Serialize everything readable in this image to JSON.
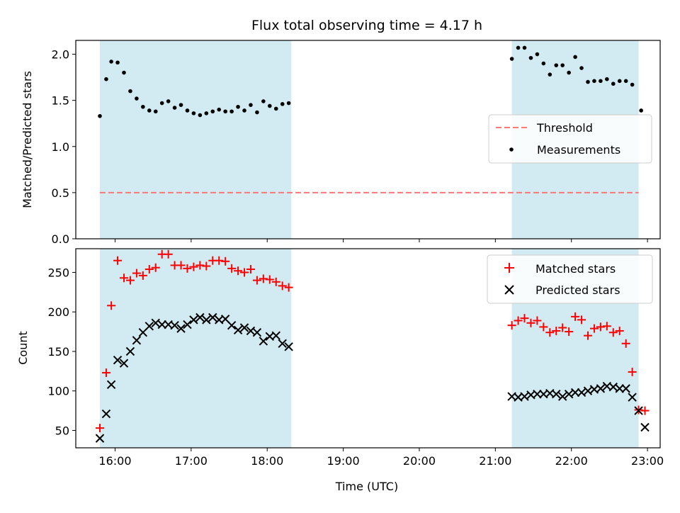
{
  "colors": {
    "shade": "#add8e6",
    "threshold": "#ff7777",
    "measurements": "#000000",
    "matched": "#ff0000",
    "predicted": "#000000"
  },
  "chart_data": [
    {
      "type": "scatter",
      "title": "Flux total observing time = 4.17 h",
      "ylabel": "Matched/Predicted stars",
      "xlabel": "",
      "xlim": [
        "15:29",
        "23:10"
      ],
      "ylim": [
        0,
        2.15
      ],
      "xticks": [
        "16:00",
        "17:00",
        "18:00",
        "19:00",
        "20:00",
        "21:00",
        "22:00",
        "23:00"
      ],
      "yticks": [
        "0.0",
        "0.5",
        "1.0",
        "1.5",
        "2.0"
      ],
      "shaded_regions": [
        [
          "15:48",
          "18:19"
        ],
        [
          "21:13",
          "22:53"
        ]
      ],
      "threshold": {
        "name": "Threshold",
        "value": 0.5,
        "x_range": [
          "15:48",
          "22:53"
        ]
      },
      "legend_position": "center-right",
      "series": [
        {
          "name": "Measurements",
          "marker": "dot",
          "x": [
            "15:48",
            "15:53",
            "15:57",
            "16:02",
            "16:07",
            "16:12",
            "16:17",
            "16:22",
            "16:27",
            "16:32",
            "16:37",
            "16:42",
            "16:47",
            "16:52",
            "16:57",
            "17:02",
            "17:07",
            "17:12",
            "17:17",
            "17:22",
            "17:27",
            "17:32",
            "17:37",
            "17:42",
            "17:47",
            "17:52",
            "17:57",
            "18:02",
            "18:07",
            "18:12",
            "18:17",
            "21:13",
            "21:18",
            "21:23",
            "21:28",
            "21:33",
            "21:38",
            "21:43",
            "21:48",
            "21:53",
            "21:58",
            "22:03",
            "22:08",
            "22:13",
            "22:18",
            "22:23",
            "22:28",
            "22:33",
            "22:38",
            "22:43",
            "22:48",
            "22:55"
          ],
          "y": [
            1.33,
            1.73,
            1.92,
            1.91,
            1.8,
            1.6,
            1.52,
            1.43,
            1.39,
            1.38,
            1.47,
            1.49,
            1.42,
            1.45,
            1.39,
            1.36,
            1.34,
            1.36,
            1.38,
            1.4,
            1.38,
            1.38,
            1.43,
            1.39,
            1.45,
            1.37,
            1.49,
            1.44,
            1.41,
            1.46,
            1.47,
            1.95,
            2.07,
            2.07,
            1.96,
            2.0,
            1.9,
            1.78,
            1.88,
            1.88,
            1.8,
            1.97,
            1.85,
            1.7,
            1.71,
            1.71,
            1.73,
            1.68,
            1.71,
            1.71,
            1.67,
            1.39
          ]
        }
      ]
    },
    {
      "type": "scatter",
      "title": "",
      "ylabel": "Count",
      "xlabel": "Time (UTC)",
      "xlim": [
        "15:29",
        "23:10"
      ],
      "ylim": [
        28,
        280
      ],
      "xticks": [
        "16:00",
        "17:00",
        "18:00",
        "19:00",
        "20:00",
        "21:00",
        "22:00",
        "23:00"
      ],
      "yticks": [
        "50",
        "100",
        "150",
        "200",
        "250"
      ],
      "shaded_regions": [
        [
          "15:48",
          "18:19"
        ],
        [
          "21:13",
          "22:53"
        ]
      ],
      "legend_position": "upper-right",
      "series": [
        {
          "name": "Matched stars",
          "marker": "plus",
          "x": [
            "15:48",
            "15:53",
            "15:57",
            "16:02",
            "16:07",
            "16:12",
            "16:17",
            "16:22",
            "16:27",
            "16:32",
            "16:37",
            "16:42",
            "16:47",
            "16:52",
            "16:57",
            "17:02",
            "17:07",
            "17:12",
            "17:17",
            "17:22",
            "17:27",
            "17:32",
            "17:37",
            "17:42",
            "17:47",
            "17:52",
            "17:57",
            "18:02",
            "18:07",
            "18:12",
            "18:17",
            "21:13",
            "21:18",
            "21:23",
            "21:28",
            "21:33",
            "21:38",
            "21:43",
            "21:48",
            "21:53",
            "21:58",
            "22:03",
            "22:08",
            "22:13",
            "22:18",
            "22:23",
            "22:28",
            "22:33",
            "22:38",
            "22:43",
            "22:48",
            "22:53",
            "22:58"
          ],
          "y": [
            53,
            123,
            208,
            265,
            243,
            240,
            249,
            246,
            254,
            256,
            273,
            273,
            259,
            259,
            255,
            257,
            259,
            258,
            265,
            265,
            264,
            255,
            252,
            250,
            254,
            240,
            242,
            241,
            238,
            233,
            231,
            183,
            189,
            192,
            186,
            189,
            181,
            174,
            176,
            180,
            175,
            194,
            190,
            170,
            179,
            181,
            182,
            174,
            176,
            160,
            124,
            76,
            75
          ]
        },
        {
          "name": "Predicted stars",
          "marker": "x",
          "x": [
            "15:48",
            "15:53",
            "15:57",
            "16:02",
            "16:07",
            "16:12",
            "16:17",
            "16:22",
            "16:27",
            "16:32",
            "16:37",
            "16:42",
            "16:47",
            "16:52",
            "16:57",
            "17:02",
            "17:07",
            "17:12",
            "17:17",
            "17:22",
            "17:27",
            "17:32",
            "17:37",
            "17:42",
            "17:47",
            "17:52",
            "17:57",
            "18:02",
            "18:07",
            "18:12",
            "18:17",
            "21:13",
            "21:18",
            "21:23",
            "21:28",
            "21:33",
            "21:38",
            "21:43",
            "21:48",
            "21:53",
            "21:58",
            "22:03",
            "22:08",
            "22:13",
            "22:18",
            "22:23",
            "22:28",
            "22:33",
            "22:38",
            "22:43",
            "22:48",
            "22:53",
            "22:58"
          ],
          "y": [
            40,
            71,
            108,
            139,
            135,
            150,
            164,
            174,
            182,
            186,
            184,
            184,
            183,
            179,
            184,
            190,
            193,
            190,
            193,
            190,
            191,
            183,
            177,
            180,
            176,
            174,
            163,
            169,
            170,
            160,
            156,
            93,
            92,
            93,
            95,
            96,
            96,
            97,
            96,
            93,
            96,
            98,
            98,
            100,
            102,
            103,
            106,
            105,
            103,
            103,
            92,
            75,
            54
          ]
        }
      ]
    }
  ]
}
